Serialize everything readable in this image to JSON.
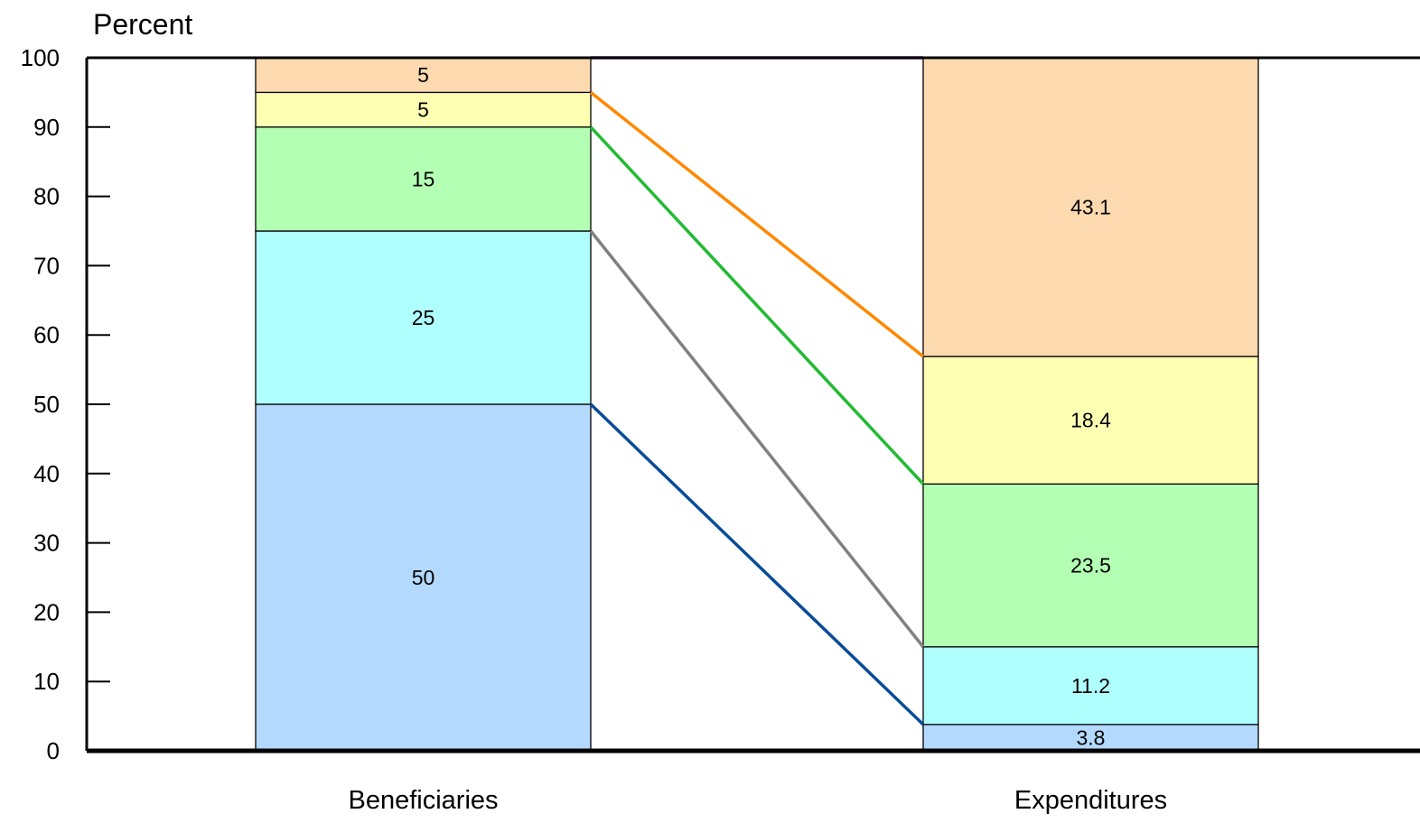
{
  "chart_data": {
    "type": "bar",
    "stacked": true,
    "ylabel": "Percent",
    "xlabel": "",
    "title": "",
    "ylim": [
      0,
      100
    ],
    "yticks": [
      0,
      10,
      20,
      30,
      40,
      50,
      60,
      70,
      80,
      90,
      100
    ],
    "grid": false,
    "categories": [
      "Beneficiaries",
      "Expenditures"
    ],
    "series": [
      {
        "values": [
          50,
          3.8
        ],
        "labels": [
          "50",
          "3.8"
        ],
        "color": "#b3d9ff",
        "connector": "#084c99"
      },
      {
        "values": [
          25,
          11.2
        ],
        "labels": [
          "25",
          "11.2"
        ],
        "color": "#b0ffff",
        "connector": "#808080"
      },
      {
        "values": [
          15,
          23.5
        ],
        "labels": [
          "15",
          "23.5"
        ],
        "color": "#b3ffb3",
        "connector": "#22bb33"
      },
      {
        "values": [
          5,
          18.4
        ],
        "labels": [
          "5",
          "18.4"
        ],
        "color": "#ffffb3",
        "connector": "#ff8800"
      },
      {
        "values": [
          5,
          43.1
        ],
        "labels": [
          "5",
          "43.1"
        ],
        "color": "#fdd9b0",
        "connector": "#7a0f8f"
      }
    ]
  }
}
